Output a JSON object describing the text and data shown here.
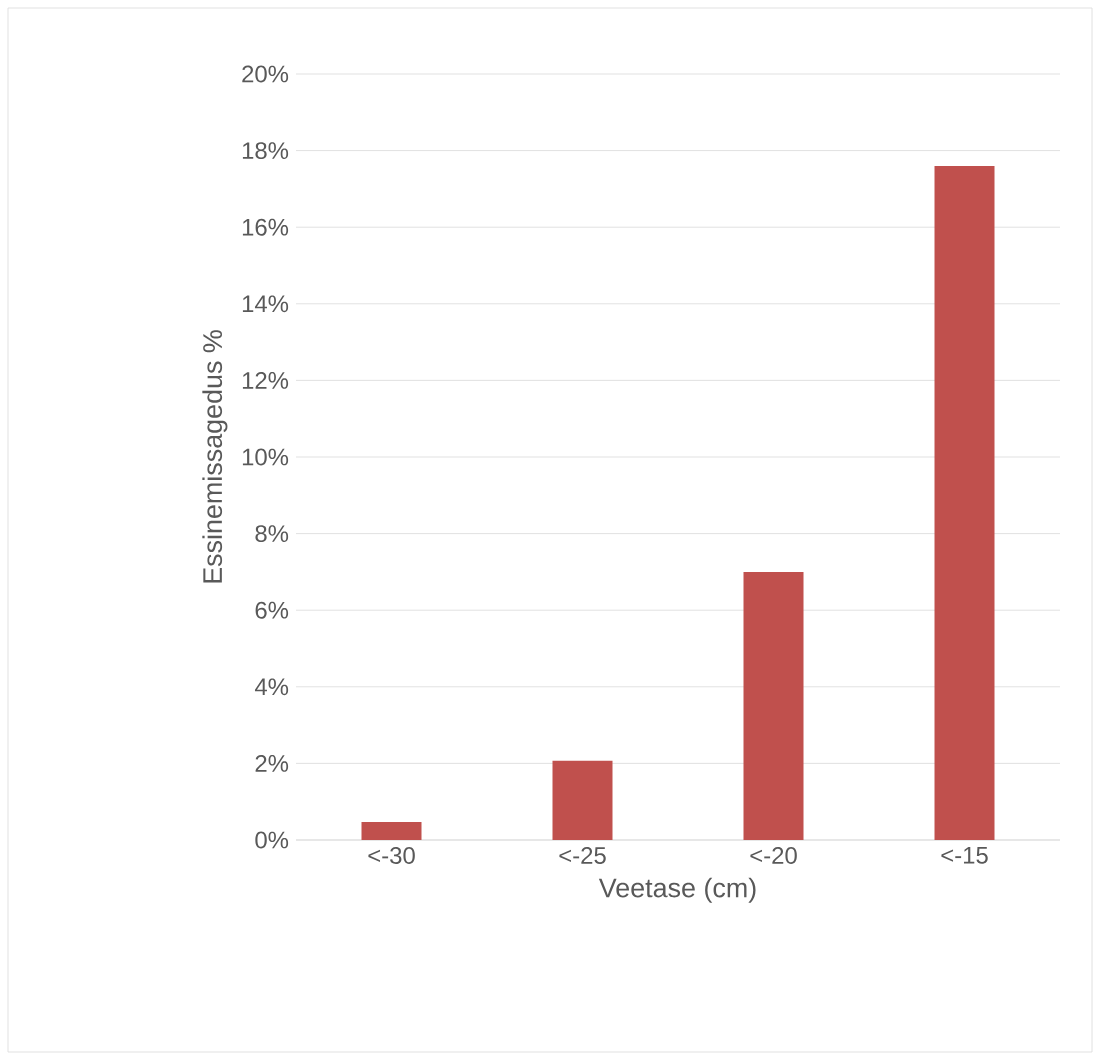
{
  "chart_data": {
    "type": "bar",
    "xlabel": "Veetase (cm)",
    "ylabel": "Essinemissagedus %",
    "categories": [
      "<-30",
      "<-25",
      "<-20",
      "<-15"
    ],
    "values": [
      0.47,
      2.07,
      7.0,
      17.6
    ],
    "color": "#c0504d",
    "ylim": [
      0,
      20
    ],
    "yticks": [
      {
        "value": 0,
        "label": "0%"
      },
      {
        "value": 2,
        "label": "2%"
      },
      {
        "value": 4,
        "label": "4%"
      },
      {
        "value": 6,
        "label": "6%"
      },
      {
        "value": 8,
        "label": "8%"
      },
      {
        "value": 10,
        "label": "10%"
      },
      {
        "value": 12,
        "label": "12%"
      },
      {
        "value": 14,
        "label": "14%"
      },
      {
        "value": 16,
        "label": "16%"
      },
      {
        "value": 18,
        "label": "18%"
      },
      {
        "value": 20,
        "label": "20%"
      }
    ],
    "grid": "y"
  }
}
